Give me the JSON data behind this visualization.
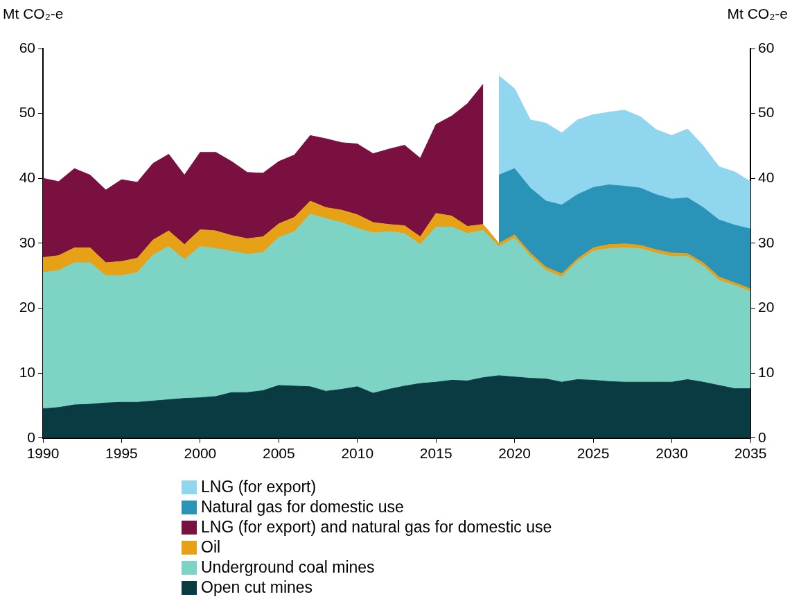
{
  "chart_data": {
    "type": "area",
    "stacked": true,
    "ylabel": "Mt CO₂-e",
    "y2label": "Mt CO₂-e",
    "x": [
      1990,
      1991,
      1992,
      1993,
      1994,
      1995,
      1996,
      1997,
      1998,
      1999,
      2000,
      2001,
      2002,
      2003,
      2004,
      2005,
      2006,
      2007,
      2008,
      2009,
      2010,
      2011,
      2012,
      2013,
      2014,
      2015,
      2016,
      2017,
      2018,
      2019,
      2020,
      2021,
      2022,
      2023,
      2024,
      2025,
      2026,
      2027,
      2028,
      2029,
      2030,
      2031,
      2032,
      2033,
      2034,
      2035
    ],
    "xlim": [
      1990,
      2035
    ],
    "xticks": [
      1990,
      1995,
      2000,
      2005,
      2010,
      2015,
      2020,
      2025,
      2030,
      2035
    ],
    "ylim": [
      0,
      60
    ],
    "yticks": [
      0,
      10,
      20,
      30,
      40,
      50,
      60
    ],
    "y2lim": [
      0,
      60
    ],
    "y2ticks": [
      0,
      10,
      20,
      30,
      40,
      50,
      60
    ],
    "grid": false,
    "legend": "bottom",
    "series": [
      {
        "name": "Open cut mines",
        "color": "#0b3b42",
        "values": [
          4.5,
          4.7,
          5.1,
          5.2,
          5.4,
          5.5,
          5.5,
          5.7,
          5.9,
          6.1,
          6.2,
          6.4,
          7.0,
          7.0,
          7.3,
          8.1,
          8.0,
          7.9,
          7.2,
          7.5,
          7.9,
          6.9,
          7.5,
          8.0,
          8.4,
          8.6,
          8.9,
          8.8,
          9.3,
          9.6,
          9.4,
          9.2,
          9.1,
          8.6,
          9.0,
          8.9,
          8.7,
          8.6,
          8.6,
          8.6,
          8.6,
          9.0,
          8.6,
          8.1,
          7.6,
          7.6
        ]
      },
      {
        "name": "Underground coal mines",
        "color": "#7dd3c4",
        "values": [
          21.0,
          21.1,
          21.9,
          21.8,
          19.6,
          19.5,
          20.0,
          22.5,
          23.6,
          21.4,
          23.3,
          22.8,
          21.8,
          21.3,
          21.3,
          22.8,
          23.8,
          26.6,
          26.6,
          25.7,
          24.4,
          24.7,
          24.3,
          23.5,
          21.4,
          23.9,
          23.6,
          22.7,
          22.7,
          19.9,
          21.4,
          18.8,
          16.7,
          16.2,
          18.2,
          19.9,
          20.5,
          20.7,
          20.6,
          19.9,
          19.4,
          19.0,
          17.9,
          16.2,
          15.9,
          15.0
        ]
      },
      {
        "name": "Oil",
        "color": "#e6a117",
        "values": [
          2.3,
          2.3,
          2.3,
          2.3,
          2.0,
          2.2,
          2.2,
          2.3,
          2.4,
          2.3,
          2.6,
          2.7,
          2.4,
          2.4,
          2.4,
          2.1,
          2.2,
          2.0,
          1.7,
          1.9,
          2.1,
          1.6,
          1.1,
          1.2,
          1.2,
          2.1,
          1.7,
          1.1,
          0.9,
          0.5,
          0.5,
          0.5,
          0.5,
          0.5,
          0.4,
          0.5,
          0.6,
          0.6,
          0.5,
          0.5,
          0.5,
          0.4,
          0.5,
          0.5,
          0.4,
          0.4
        ]
      },
      {
        "name": "LNG (for export) and natural gas for domestic use",
        "color": "#7a1040",
        "values": [
          12.2,
          11.4,
          12.2,
          11.2,
          11.2,
          12.6,
          11.7,
          11.8,
          11.8,
          10.7,
          11.9,
          12.1,
          11.4,
          10.2,
          9.8,
          9.6,
          9.6,
          10.1,
          10.6,
          10.4,
          10.9,
          10.6,
          11.6,
          12.4,
          12.1,
          13.7,
          15.4,
          18.9,
          21.6,
          null,
          null,
          null,
          null,
          null,
          null,
          null,
          null,
          null,
          null,
          null,
          null,
          null,
          null,
          null,
          null,
          null
        ]
      },
      {
        "name": "Natural gas for domestic use",
        "color": "#2a93b8",
        "values": [
          null,
          null,
          null,
          null,
          null,
          null,
          null,
          null,
          null,
          null,
          null,
          null,
          null,
          null,
          null,
          null,
          null,
          null,
          null,
          null,
          null,
          null,
          null,
          null,
          null,
          null,
          null,
          null,
          null,
          10.5,
          10.2,
          10.0,
          10.2,
          10.6,
          9.9,
          9.3,
          9.2,
          8.9,
          8.8,
          8.5,
          8.3,
          8.6,
          8.5,
          8.8,
          8.9,
          9.2
        ]
      },
      {
        "name": "LNG (for export)",
        "color": "#8fd6ee",
        "values": [
          null,
          null,
          null,
          null,
          null,
          null,
          null,
          null,
          null,
          null,
          null,
          null,
          null,
          null,
          null,
          null,
          null,
          null,
          null,
          null,
          null,
          null,
          null,
          null,
          null,
          null,
          null,
          null,
          null,
          15.3,
          12.3,
          10.5,
          12.0,
          11.1,
          11.5,
          11.2,
          11.2,
          11.7,
          11.0,
          10.0,
          9.8,
          10.6,
          9.5,
          8.2,
          8.2,
          7.3
        ]
      }
    ]
  }
}
